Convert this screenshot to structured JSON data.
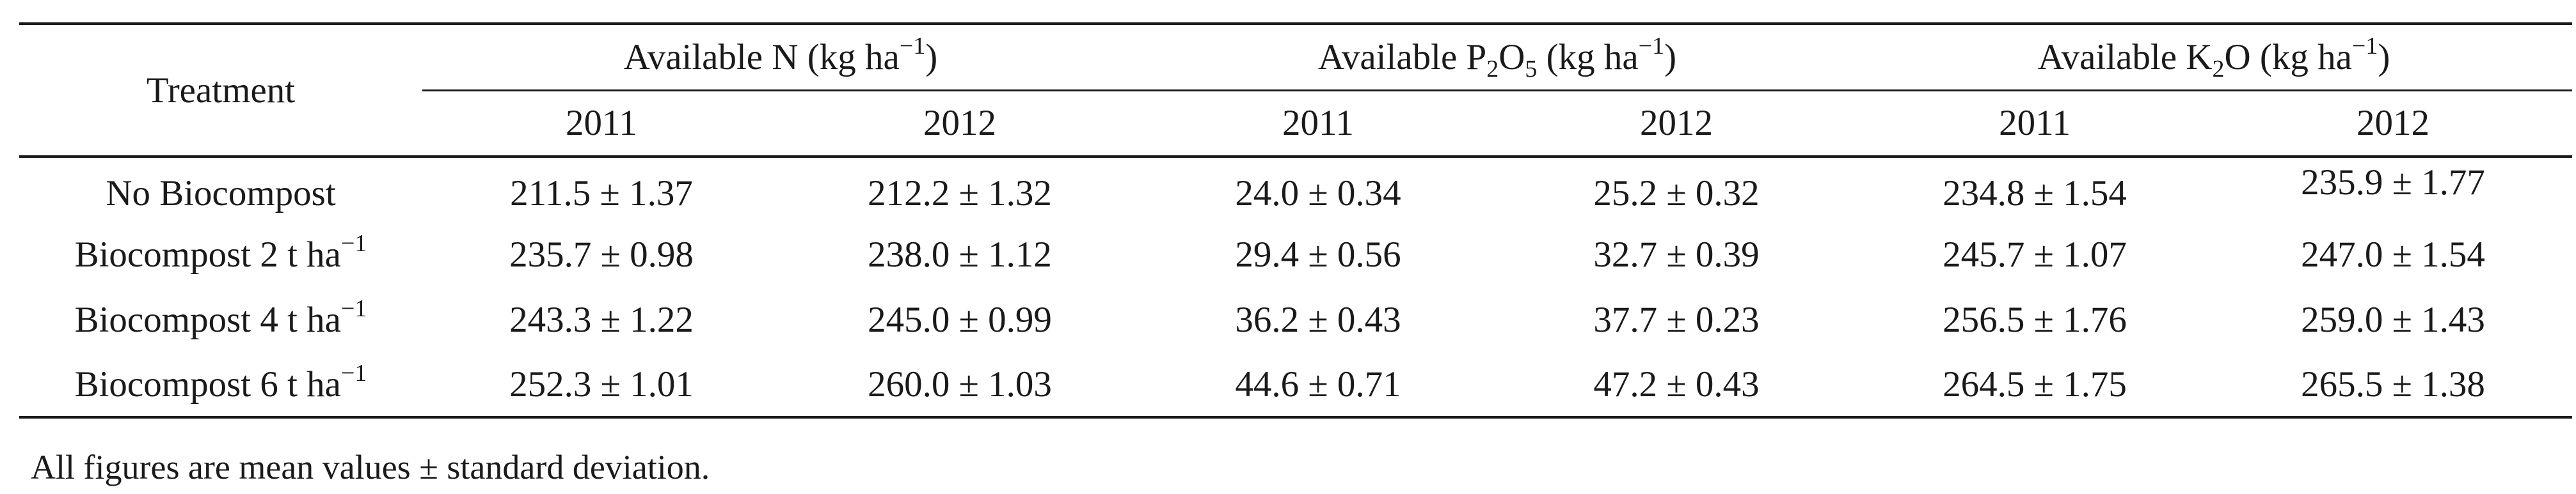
{
  "table": {
    "header": {
      "treatment": "Treatment",
      "groups": [
        {
          "pre": "Available N (kg ha",
          "sub": "",
          "mid": "",
          "sup": "−1",
          "post": ")"
        },
        {
          "pre": "Available P",
          "sub": "2",
          "mid": "O",
          "sub2": "5",
          "tail": " (kg ha",
          "sup": "−1",
          "post": ")"
        },
        {
          "pre": "Available K",
          "sub": "2",
          "mid": "O (kg ha",
          "sup": "−1",
          "post": ")"
        }
      ],
      "years": [
        "2011",
        "2012",
        "2011",
        "2012",
        "2011",
        "2012"
      ]
    },
    "rows": [
      {
        "treatment": {
          "text": "No Biocompost",
          "sup": ""
        },
        "values": [
          "211.5 ± 1.37",
          "212.2 ± 1.32",
          "24.0 ± 0.34",
          "25.2 ± 0.32",
          "234.8 ± 1.54",
          "235.9 ± 1.77"
        ]
      },
      {
        "treatment": {
          "text": "Biocompost 2 t ha",
          "sup": "−1"
        },
        "values": [
          "235.7 ± 0.98",
          "238.0 ± 1.12",
          "29.4 ± 0.56",
          "32.7 ± 0.39",
          "245.7 ± 1.07",
          "247.0 ± 1.54"
        ]
      },
      {
        "treatment": {
          "text": "Biocompost 4 t ha",
          "sup": "−1"
        },
        "values": [
          "243.3 ± 1.22",
          "245.0 ± 0.99",
          "36.2 ± 0.43",
          "37.7 ± 0.23",
          "256.5 ± 1.76",
          "259.0 ± 1.43"
        ]
      },
      {
        "treatment": {
          "text": "Biocompost 6 t ha",
          "sup": "−1"
        },
        "values": [
          "252.3 ± 1.01",
          "260.0 ± 1.03",
          "44.6 ± 0.71",
          "47.2 ± 0.43",
          "264.5 ± 1.75",
          "265.5 ± 1.38"
        ]
      }
    ]
  },
  "footnote": "All figures are mean values  ± standard deviation."
}
